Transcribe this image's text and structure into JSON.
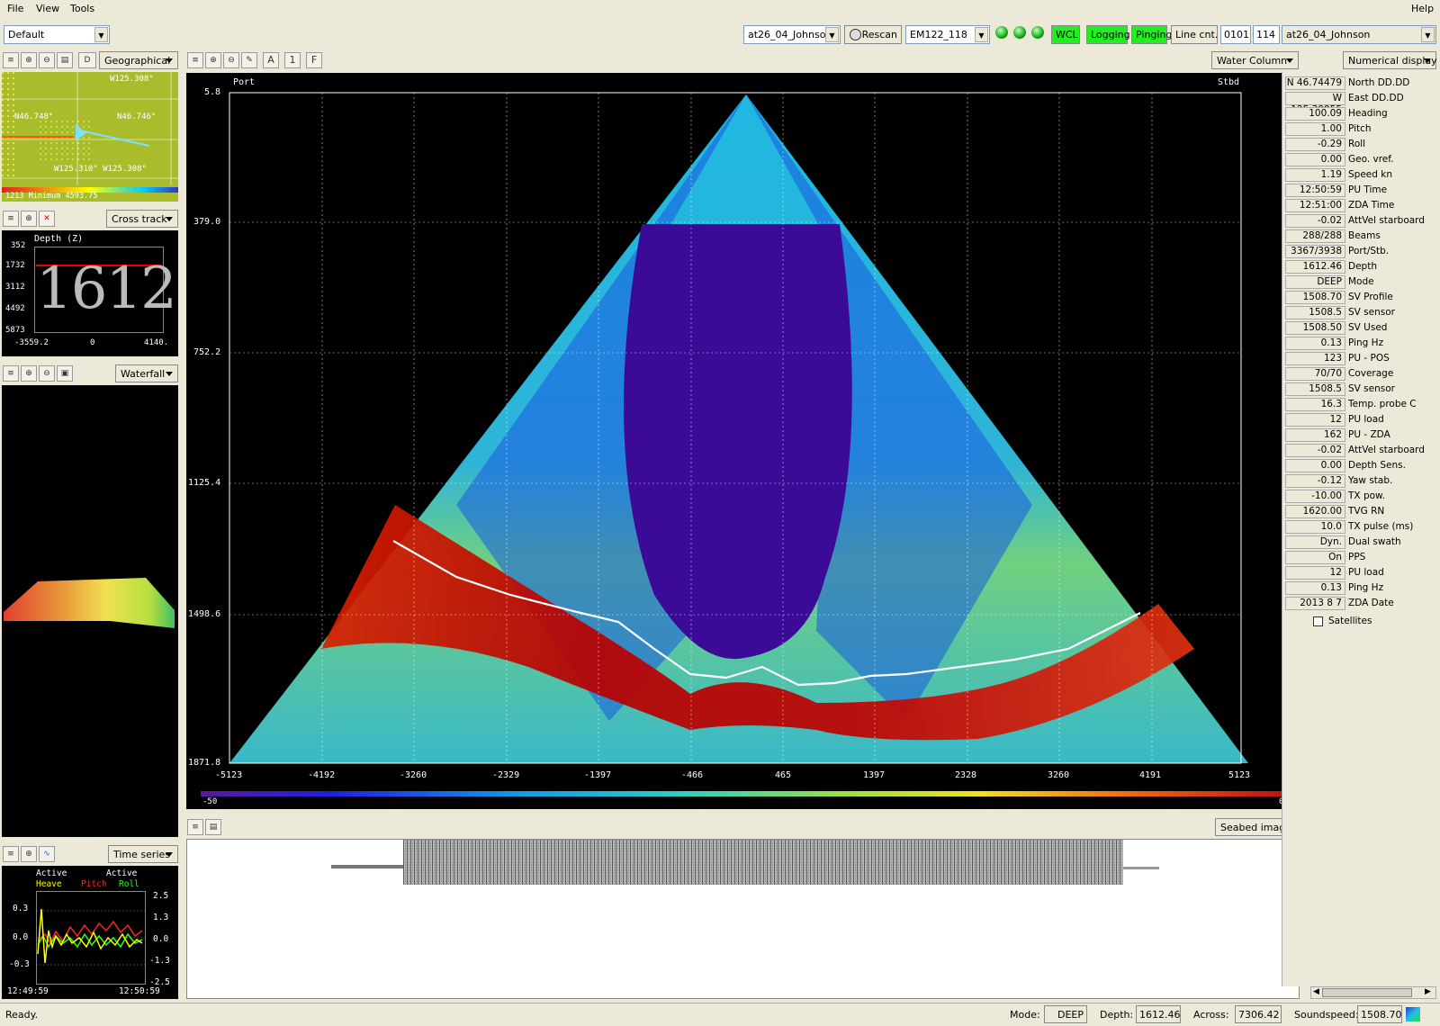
{
  "menu": {
    "file": "File",
    "view": "View",
    "tools": "Tools",
    "help": "Help"
  },
  "toolbar": {
    "profile": "Default",
    "survey": "at26_04_Johnson",
    "rescan": "Rescan",
    "sonar": "EM122_118",
    "wcl": "WCL",
    "logging": "Logging",
    "pinging": "Pinging",
    "line_cnt": "Line cnt.",
    "line_num": "0101",
    "line_idx": "114",
    "line_name": "at26_04_Johnson"
  },
  "geo_panel": {
    "mode": "Geographical",
    "d_btn": "D",
    "top_right": "W125.308°",
    "left_mid": "N46.748°",
    "right_mid": "N46.746°",
    "bottom": "W125.310° W125.308°",
    "legend": "1213 Minimum 4593.75"
  },
  "cross_panel": {
    "mode": "Cross track",
    "title": "Depth (Z)",
    "yticks": [
      "352",
      "1732",
      "3112",
      "4492",
      "5873"
    ],
    "xticks": [
      "-3559.2",
      "0",
      "4140."
    ],
    "big_depth": "1612"
  },
  "waterfall_panel": {
    "mode": "Waterfall"
  },
  "time_panel": {
    "mode": "Time series",
    "active1": "Active",
    "active2": "Active",
    "heave": "Heave",
    "pitch": "Pitch",
    "roll": "Roll",
    "left_ticks": [
      "0.3",
      "0.0",
      "-0.3"
    ],
    "right_ticks": [
      "2.5",
      "1.3",
      "0.0",
      "-1.3",
      "-2.5"
    ],
    "t_start": "12:49:59",
    "t_end": "12:50:59"
  },
  "wc_panel": {
    "mode": "Water Column",
    "port": "Port",
    "stbd": "Stbd",
    "yticks": [
      "5.8",
      "379.0",
      "752.2",
      "1125.4",
      "1498.6",
      "1871.8"
    ],
    "xticks": [
      "-5123",
      "-4192",
      "-3260",
      "-2329",
      "-1397",
      "-466",
      "465",
      "1397",
      "2328",
      "3260",
      "4191",
      "5123"
    ],
    "scale_min": "-50",
    "scale_max": "0",
    "tb_a": "A",
    "tb_1": "1",
    "tb_f": "F"
  },
  "seabed_panel": {
    "mode": "Seabed image"
  },
  "numerical": {
    "mode": "Numerical display",
    "rows": [
      {
        "v": "N 46.74479",
        "l": "North DD.DD"
      },
      {
        "v": "W 125.30955",
        "l": "East DD.DD"
      },
      {
        "v": "100.09",
        "l": "Heading"
      },
      {
        "v": "1.00",
        "l": "Pitch"
      },
      {
        "v": "-0.29",
        "l": "Roll"
      },
      {
        "v": "0.00",
        "l": "Geo. vref."
      },
      {
        "v": "1.19",
        "l": "Speed kn"
      },
      {
        "v": "12:50:59",
        "l": "PU Time"
      },
      {
        "v": "12:51:00",
        "l": "ZDA Time"
      },
      {
        "v": "-0.02",
        "l": "AttVel starboard"
      },
      {
        "v": "288/288",
        "l": "Beams"
      },
      {
        "v": "3367/3938",
        "l": "Port/Stb."
      },
      {
        "v": "1612.46",
        "l": "Depth"
      },
      {
        "v": "DEEP",
        "l": "Mode"
      },
      {
        "v": "1508.70",
        "l": "SV Profile"
      },
      {
        "v": "1508.5",
        "l": "SV sensor"
      },
      {
        "v": "1508.50",
        "l": "SV Used"
      },
      {
        "v": "0.13",
        "l": "Ping Hz"
      },
      {
        "v": "123",
        "l": "PU - POS"
      },
      {
        "v": "70/70",
        "l": "Coverage"
      },
      {
        "v": "1508.5",
        "l": "SV sensor"
      },
      {
        "v": "16.3",
        "l": "Temp. probe C"
      },
      {
        "v": "12",
        "l": "PU load"
      },
      {
        "v": "162",
        "l": "PU - ZDA"
      },
      {
        "v": "-0.02",
        "l": "AttVel starboard"
      },
      {
        "v": "0.00",
        "l": "Depth Sens."
      },
      {
        "v": "-0.12",
        "l": "Yaw stab."
      },
      {
        "v": "-10.00",
        "l": "TX pow."
      },
      {
        "v": "1620.00",
        "l": "TVG RN"
      },
      {
        "v": "10.0",
        "l": "TX pulse (ms)"
      },
      {
        "v": "Dyn.",
        "l": "Dual swath"
      },
      {
        "v": "On",
        "l": "PPS"
      },
      {
        "v": "12",
        "l": "PU load"
      },
      {
        "v": "0.13",
        "l": "Ping Hz"
      },
      {
        "v": "2013 8 7",
        "l": "ZDA Date"
      }
    ],
    "satellites": "Satellites"
  },
  "status": {
    "ready": "Ready.",
    "mode_lbl": "Mode:",
    "mode_val": "DEEP",
    "depth_lbl": "Depth:",
    "depth_val": "1612.46",
    "across_lbl": "Across:",
    "across_val": "7306.42",
    "ss_lbl": "Soundspeed:",
    "ss_val": "1508.70"
  }
}
